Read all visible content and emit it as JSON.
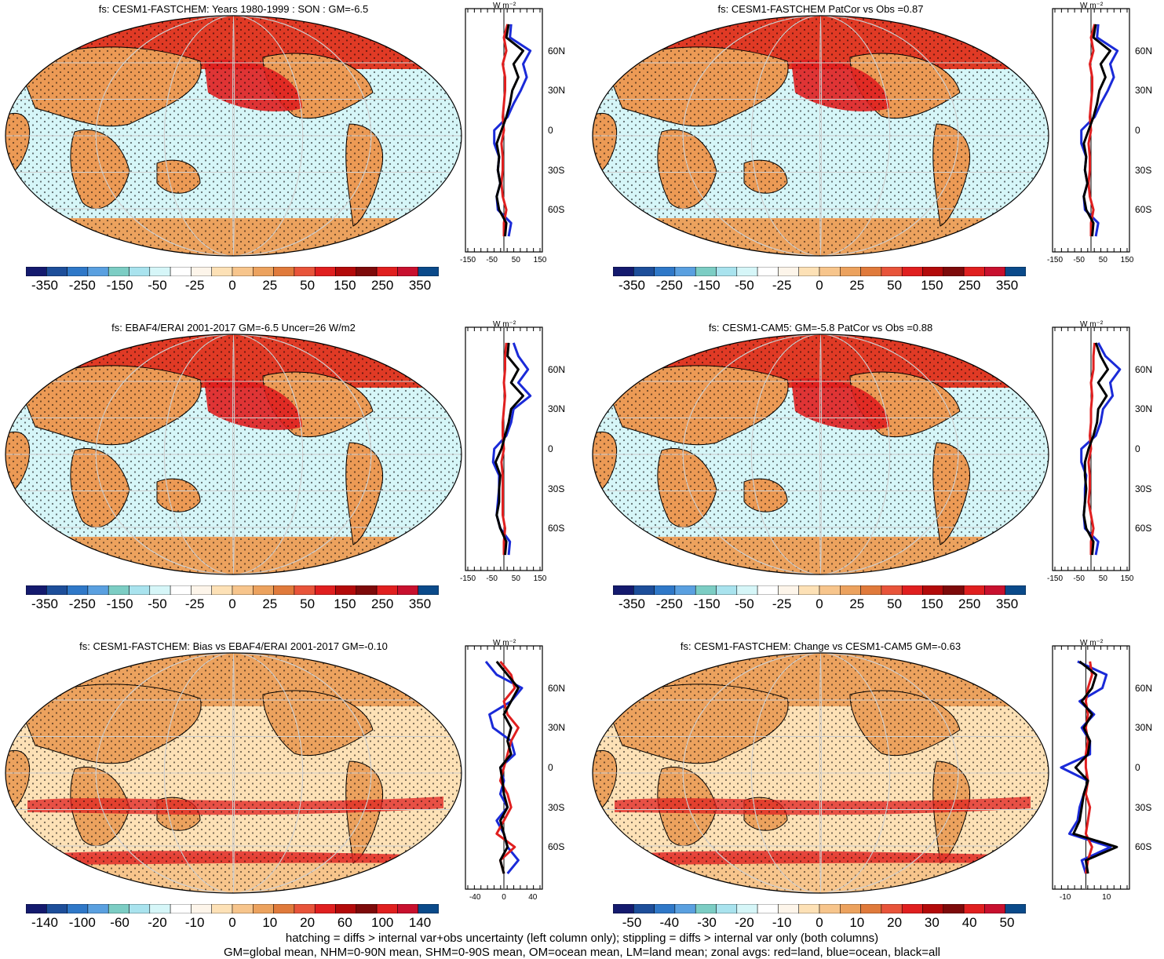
{
  "panels": [
    {
      "id": "p1",
      "title": "fs: CESM1-FASTCHEM: Years 1980-1999 : SON : GM=-6.5",
      "colorbar_labels": [
        "-350",
        "-250",
        "-150",
        "-50",
        "-25",
        "0",
        "25",
        "50",
        "150",
        "250",
        "350"
      ],
      "zonal_xticks": [
        "-150",
        "-50",
        "50",
        "150"
      ],
      "zonal_range": [
        -150,
        150
      ],
      "zonal_unit": "W m⁻²",
      "lat_labels": [
        "60N",
        "30N",
        "0",
        "30S",
        "60S"
      ],
      "zonal_data": {
        "lat": [
          80,
          70,
          60,
          50,
          40,
          30,
          20,
          10,
          0,
          -10,
          -20,
          -30,
          -40,
          -50,
          -60,
          -70,
          -80
        ],
        "all": [
          20,
          10,
          80,
          40,
          60,
          35,
          25,
          10,
          -10,
          -30,
          -20,
          -25,
          -15,
          -30,
          -20,
          10,
          5
        ],
        "land": [
          15,
          0,
          10,
          -5,
          5,
          5,
          0,
          -5,
          0,
          -10,
          -5,
          -5,
          -10,
          -5,
          10,
          0,
          0
        ],
        "ocean": [
          30,
          25,
          110,
          80,
          95,
          70,
          40,
          15,
          -40,
          -40,
          -20,
          -25,
          -15,
          -30,
          -25,
          30,
          20
        ]
      }
    },
    {
      "id": "p2",
      "title": "fs: CESM1-FASTCHEM PatCor vs Obs =0.87",
      "colorbar_labels": [
        "-350",
        "-250",
        "-150",
        "-50",
        "-25",
        "0",
        "25",
        "50",
        "150",
        "250",
        "350"
      ],
      "zonal_xticks": [
        "-150",
        "-50",
        "50",
        "150"
      ],
      "zonal_range": [
        -150,
        150
      ],
      "zonal_unit": "W m⁻²",
      "lat_labels": [
        "60N",
        "30N",
        "0",
        "30S",
        "60S"
      ],
      "zonal_data": {
        "lat": [
          80,
          70,
          60,
          50,
          40,
          30,
          20,
          10,
          0,
          -10,
          -20,
          -30,
          -40,
          -50,
          -60,
          -70,
          -80
        ],
        "all": [
          20,
          10,
          80,
          40,
          60,
          35,
          25,
          10,
          -10,
          -30,
          -20,
          -25,
          -15,
          -30,
          -20,
          10,
          5
        ],
        "land": [
          15,
          0,
          10,
          -5,
          5,
          5,
          0,
          -5,
          0,
          -10,
          -5,
          -5,
          -10,
          -5,
          10,
          0,
          0
        ],
        "ocean": [
          30,
          25,
          110,
          80,
          95,
          70,
          40,
          15,
          -40,
          -40,
          -20,
          -25,
          -15,
          -30,
          -25,
          30,
          20
        ]
      }
    },
    {
      "id": "p3",
      "title": "fs: EBAF4/ERAI 2001-2017 GM=-6.5 Uncer=26 W/m2",
      "colorbar_labels": [
        "-350",
        "-250",
        "-150",
        "-50",
        "-25",
        "0",
        "25",
        "50",
        "150",
        "250",
        "350"
      ],
      "zonal_xticks": [
        "-150",
        "-50",
        "50",
        "150"
      ],
      "zonal_range": [
        -150,
        150
      ],
      "zonal_unit": "W m⁻²",
      "lat_labels": [
        "60N",
        "30N",
        "0",
        "30S",
        "60S"
      ],
      "zonal_data": {
        "lat": [
          80,
          70,
          60,
          50,
          40,
          30,
          20,
          10,
          0,
          -10,
          -20,
          -30,
          -40,
          -50,
          -60,
          -70,
          -80
        ],
        "all": [
          20,
          15,
          60,
          30,
          80,
          30,
          20,
          5,
          -10,
          -35,
          -15,
          -20,
          -20,
          -30,
          -15,
          10,
          5
        ],
        "land": [
          10,
          5,
          5,
          0,
          5,
          0,
          -5,
          -5,
          0,
          -10,
          -5,
          -5,
          -5,
          -5,
          5,
          0,
          0
        ],
        "ocean": [
          40,
          60,
          100,
          60,
          110,
          40,
          30,
          10,
          -40,
          -45,
          -20,
          -20,
          -25,
          -30,
          -15,
          25,
          20
        ]
      }
    },
    {
      "id": "p4",
      "title": "fs: CESM1-CAM5: GM=-5.8 PatCor vs Obs =0.88",
      "colorbar_labels": [
        "-350",
        "-250",
        "-150",
        "-50",
        "-25",
        "0",
        "25",
        "50",
        "150",
        "250",
        "350"
      ],
      "zonal_xticks": [
        "-150",
        "-50",
        "50",
        "150"
      ],
      "zonal_range": [
        -150,
        150
      ],
      "zonal_unit": "W m⁻²",
      "lat_labels": [
        "60N",
        "30N",
        "0",
        "30S",
        "60S"
      ],
      "zonal_data": {
        "lat": [
          80,
          70,
          60,
          50,
          40,
          30,
          20,
          10,
          0,
          -10,
          -20,
          -30,
          -40,
          -50,
          -60,
          -70,
          -80
        ],
        "all": [
          20,
          40,
          70,
          30,
          65,
          30,
          25,
          10,
          -10,
          -25,
          -25,
          -20,
          -25,
          -30,
          -20,
          10,
          5
        ],
        "land": [
          15,
          10,
          10,
          0,
          5,
          0,
          0,
          -5,
          0,
          -10,
          -5,
          -5,
          -10,
          0,
          10,
          0,
          0
        ],
        "ocean": [
          30,
          60,
          120,
          80,
          90,
          50,
          40,
          20,
          -40,
          -40,
          -20,
          -25,
          -25,
          -30,
          -25,
          30,
          20
        ]
      }
    },
    {
      "id": "p5",
      "title": "fs: CESM1-FASTCHEM: Bias vs EBAF4/ERAI 2001-2017  GM=-0.10",
      "colorbar_labels": [
        "-140",
        "-100",
        "-60",
        "-20",
        "-10",
        "0",
        "10",
        "20",
        "60",
        "100",
        "140"
      ],
      "zonal_xticks": [
        "-40",
        "0",
        "40"
      ],
      "zonal_range": [
        -50,
        50
      ],
      "zonal_unit": "W m⁻²",
      "lat_labels": [
        "60N",
        "30N",
        "0",
        "30S",
        "60S"
      ],
      "zonal_data": {
        "lat": [
          80,
          70,
          60,
          50,
          40,
          30,
          20,
          10,
          0,
          -10,
          -20,
          -30,
          -40,
          -50,
          -60,
          -70,
          -80
        ],
        "all": [
          -10,
          5,
          20,
          10,
          0,
          10,
          5,
          10,
          -5,
          -2,
          0,
          5,
          -5,
          0,
          5,
          -5,
          0
        ],
        "land": [
          -5,
          10,
          15,
          0,
          5,
          20,
          10,
          5,
          0,
          -5,
          5,
          10,
          0,
          -10,
          15,
          -5,
          0
        ],
        "ocean": [
          -25,
          -10,
          25,
          10,
          -20,
          -15,
          10,
          15,
          -5,
          0,
          -5,
          5,
          -10,
          0,
          5,
          20,
          5
        ]
      }
    },
    {
      "id": "p6",
      "title": "fs: CESM1-FASTCHEM: Change vs CESM1-CAM5 GM=-0.63",
      "colorbar_labels": [
        "-50",
        "-40",
        "-30",
        "-20",
        "-10",
        "0",
        "10",
        "20",
        "30",
        "40",
        "50"
      ],
      "zonal_xticks": [
        "-10",
        "10"
      ],
      "zonal_range": [
        -15,
        20
      ],
      "zonal_unit": "W m⁻²",
      "lat_labels": [
        "60N",
        "30N",
        "0",
        "30S",
        "60S"
      ],
      "zonal_data": {
        "lat": [
          80,
          70,
          60,
          50,
          40,
          30,
          20,
          10,
          0,
          -10,
          -20,
          -30,
          -40,
          -50,
          -60,
          -70,
          -80
        ],
        "all": [
          -3,
          5,
          3,
          -2,
          3,
          -1,
          2,
          1,
          -5,
          1,
          -1,
          -2,
          -3,
          -6,
          15,
          0,
          1
        ],
        "land": [
          2,
          3,
          1,
          0,
          1,
          0,
          1,
          0,
          0,
          1,
          0,
          2,
          1,
          0,
          3,
          1,
          0
        ],
        "ocean": [
          -4,
          10,
          8,
          -3,
          4,
          -2,
          2,
          2,
          -12,
          1,
          -1,
          -3,
          -4,
          -8,
          12,
          -2,
          0
        ]
      }
    }
  ],
  "footer": {
    "line1": "hatching = diffs > internal var+obs uncertainty (left column only); stippling = diffs > internal var only (both columns)",
    "line2": "GM=global mean, NHM=0-90N mean, SHM=0-90S mean, OM=ocean mean, LM=land mean; zonal avgs: red=land, blue=ocean, black=all"
  },
  "colors": {
    "colorbar": [
      "#141a6e",
      "#1d4e9a",
      "#2f78c8",
      "#5aa0e0",
      "#7ccdc4",
      "#a9e3ee",
      "#d6f6f8",
      "#ffffff",
      "#fdf5ea",
      "#fde1b6",
      "#f7c58c",
      "#eca25e",
      "#e07a3b",
      "#e8543a",
      "#e01f1f",
      "#b30a0a",
      "#7d0a0a",
      "#e01f1f",
      "#c8102e",
      "#0a4a8a"
    ],
    "land_line": "#e01f1f",
    "ocean_line": "#1a2ad8",
    "all_line": "#000000",
    "ocean_fill": "#d6f6f8",
    "land_fill": "#ec9a55",
    "arctic_fill": "#e03a25"
  }
}
